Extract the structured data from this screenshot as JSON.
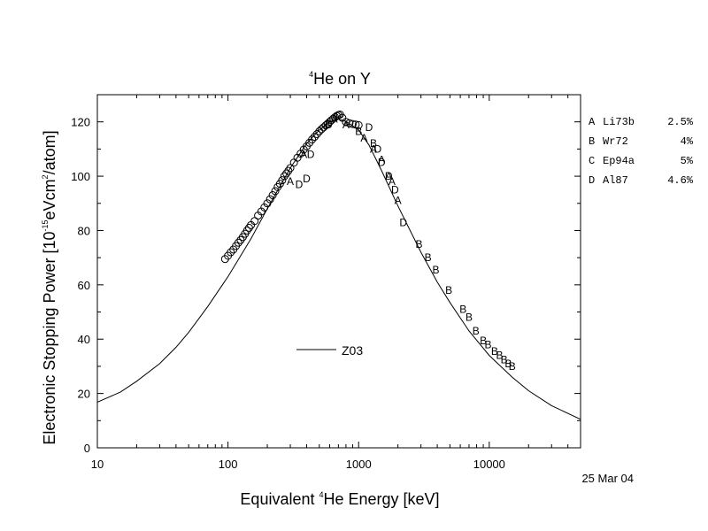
{
  "chart_data": {
    "type": "scatter",
    "title_sup": "4",
    "title_rest": "He on Y",
    "xlabel_pre": "Equivalent ",
    "xlabel_sup": "4",
    "xlabel_post": "He Energy [keV]",
    "ylabel_pre": "Electronic Stopping Power [10",
    "ylabel_sup1": "-15",
    "ylabel_mid": "eVcm",
    "ylabel_sup2": "2",
    "ylabel_post": "/atom]",
    "x_scale": "log",
    "xlim": [
      10,
      50000
    ],
    "ylim": [
      0,
      130
    ],
    "x_ticks": [
      {
        "value": 10,
        "label": "10"
      },
      {
        "value": 100,
        "label": "100"
      },
      {
        "value": 1000,
        "label": "1000"
      },
      {
        "value": 10000,
        "label": "10000"
      }
    ],
    "y_ticks": [
      {
        "value": 0,
        "label": "0"
      },
      {
        "value": 20,
        "label": "20"
      },
      {
        "value": 40,
        "label": "40"
      },
      {
        "value": 60,
        "label": "60"
      },
      {
        "value": 80,
        "label": "80"
      },
      {
        "value": 100,
        "label": "100"
      },
      {
        "value": 120,
        "label": "120"
      }
    ],
    "grid": false,
    "date_stamp": "25 Mar 04",
    "curve_legend": {
      "label": "Z03",
      "placement": "lower-center"
    },
    "datasets_legend": {
      "placement": "right",
      "entries": [
        {
          "marker": "A",
          "source": "Li73b",
          "error": "2.5%"
        },
        {
          "marker": "B",
          "source": "Wr72",
          "error": "4%"
        },
        {
          "marker": "C",
          "source": "Ep94a",
          "error": "5%"
        },
        {
          "marker": "D",
          "source": "Al87",
          "error": "4.6%"
        }
      ]
    },
    "series": [
      {
        "name": "Z03",
        "kind": "line",
        "points": [
          [
            10,
            16.8
          ],
          [
            15,
            20.5
          ],
          [
            20,
            24.5
          ],
          [
            30,
            31
          ],
          [
            40,
            37
          ],
          [
            50,
            42.5
          ],
          [
            70,
            52
          ],
          [
            100,
            63
          ],
          [
            150,
            77
          ],
          [
            200,
            88
          ],
          [
            300,
            103
          ],
          [
            400,
            112
          ],
          [
            500,
            117
          ],
          [
            600,
            120
          ],
          [
            700,
            121
          ],
          [
            800,
            120.2
          ],
          [
            1000,
            117
          ],
          [
            1200,
            111.5
          ],
          [
            1500,
            102
          ],
          [
            2000,
            89
          ],
          [
            3000,
            72
          ],
          [
            4000,
            61
          ],
          [
            5000,
            53.5
          ],
          [
            7000,
            43
          ],
          [
            10000,
            34
          ],
          [
            15000,
            26
          ],
          [
            20000,
            21
          ],
          [
            30000,
            15.5
          ],
          [
            50000,
            10.5
          ]
        ]
      },
      {
        "name": "A",
        "kind": "letter",
        "points": [
          [
            300,
            98
          ],
          [
            380,
            108
          ],
          [
            650,
            121
          ],
          [
            800,
            119
          ],
          [
            1100,
            114
          ],
          [
            1300,
            110
          ],
          [
            1500,
            106
          ],
          [
            1700,
            100
          ],
          [
            1800,
            98
          ],
          [
            2000,
            91
          ]
        ]
      },
      {
        "name": "B",
        "kind": "letter",
        "points": [
          [
            1000,
            116.5
          ],
          [
            1300,
            112
          ],
          [
            2900,
            75
          ],
          [
            3400,
            70
          ],
          [
            3900,
            65.5
          ],
          [
            4900,
            58
          ],
          [
            6300,
            51
          ],
          [
            7000,
            48
          ],
          [
            7900,
            43
          ],
          [
            9000,
            39.5
          ],
          [
            9800,
            38
          ],
          [
            11000,
            35.5
          ],
          [
            12000,
            34
          ],
          [
            13000,
            32.5
          ],
          [
            14000,
            31
          ],
          [
            15000,
            30
          ]
        ]
      },
      {
        "name": "C",
        "kind": "circle",
        "points": [
          [
            95,
            69.5
          ],
          [
            100,
            70.7
          ],
          [
            105,
            72
          ],
          [
            110,
            73
          ],
          [
            115,
            74.3
          ],
          [
            120,
            75.5
          ],
          [
            125,
            76.5
          ],
          [
            130,
            77.6
          ],
          [
            135,
            78.8
          ],
          [
            140,
            80
          ],
          [
            145,
            81
          ],
          [
            150,
            82
          ],
          [
            160,
            83.5
          ],
          [
            170,
            85.5
          ],
          [
            180,
            87
          ],
          [
            190,
            88.5
          ],
          [
            200,
            90
          ],
          [
            210,
            91.5
          ],
          [
            220,
            93
          ],
          [
            230,
            94.5
          ],
          [
            240,
            96
          ],
          [
            250,
            97.2
          ],
          [
            260,
            98.5
          ],
          [
            270,
            100
          ],
          [
            280,
            101
          ],
          [
            290,
            102
          ],
          [
            300,
            103
          ],
          [
            320,
            105
          ],
          [
            340,
            106.8
          ],
          [
            360,
            108.3
          ],
          [
            380,
            109.8
          ],
          [
            400,
            111
          ],
          [
            420,
            112.3
          ],
          [
            440,
            113.5
          ],
          [
            460,
            114.5
          ],
          [
            480,
            115.5
          ],
          [
            500,
            116.5
          ],
          [
            520,
            117.3
          ],
          [
            540,
            118
          ],
          [
            560,
            118.7
          ],
          [
            580,
            119.3
          ],
          [
            600,
            120
          ],
          [
            620,
            120.6
          ],
          [
            640,
            121.2
          ],
          [
            660,
            121.7
          ],
          [
            680,
            122.2
          ],
          [
            700,
            122.5
          ],
          [
            720,
            122.7
          ],
          [
            750,
            121.5
          ],
          [
            800,
            120
          ],
          [
            850,
            119.5
          ],
          [
            900,
            119.2
          ],
          [
            950,
            119
          ],
          [
            1000,
            118.8
          ]
        ]
      },
      {
        "name": "D",
        "kind": "letter",
        "points": [
          [
            350,
            97
          ],
          [
            400,
            99
          ],
          [
            430,
            108
          ],
          [
            590,
            119
          ],
          [
            1200,
            118
          ],
          [
            1400,
            110
          ],
          [
            1500,
            105
          ],
          [
            1700,
            100
          ],
          [
            1900,
            95
          ],
          [
            2200,
            83
          ]
        ]
      }
    ]
  }
}
